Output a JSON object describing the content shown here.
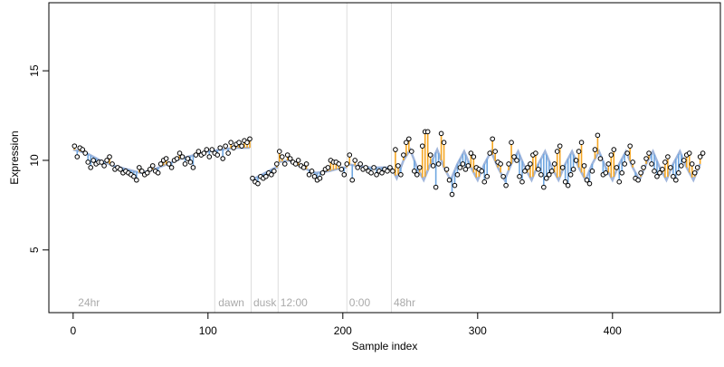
{
  "chart_data": {
    "type": "scatter",
    "title": "",
    "xlabel": "Sample index",
    "ylabel": "Expression",
    "xlim": [
      -18,
      480
    ],
    "ylim": [
      1.5,
      18.8
    ],
    "x_ticks": [
      0,
      100,
      200,
      300,
      400
    ],
    "y_ticks": [
      5,
      10,
      15
    ],
    "grid": false,
    "colors": {
      "points": "#000000",
      "fit_line": "#6E8FC9",
      "residual_above": "#F5A623",
      "residual_below": "#6EA6E0",
      "phase_lines": "#DDDDDD",
      "phase_labels": "#AAAAAA"
    },
    "phase_boundaries": [
      105,
      132,
      152,
      203,
      236
    ],
    "phase_labels": [
      {
        "x": 3,
        "text": "24hr"
      },
      {
        "x": 107,
        "text": "dawn"
      },
      {
        "x": 133,
        "text": "dusk"
      },
      {
        "x": 153,
        "text": "12:00"
      },
      {
        "x": 204,
        "text": "0:00"
      },
      {
        "x": 237,
        "text": "48hr"
      }
    ],
    "fit_segments": [
      {
        "name": "",
        "x": [
          0,
          10,
          20,
          30,
          40,
          50,
          60,
          70,
          80,
          90,
          100,
          110,
          120,
          131
        ],
        "y": [
          10.6,
          10.4,
          10.0,
          9.7,
          9.5,
          9.3,
          9.5,
          9.8,
          10.1,
          10.3,
          10.5,
          10.6,
          10.7,
          10.7
        ]
      },
      {
        "name": "",
        "x": [
          132,
          140,
          150,
          152
        ],
        "y": [
          8.9,
          9.2,
          9.6,
          9.6
        ]
      },
      {
        "name": "",
        "x": [
          152,
          160,
          170,
          180,
          190,
          200,
          203
        ],
        "y": [
          9.9,
          10.0,
          9.6,
          9.3,
          9.4,
          9.6,
          9.6
        ]
      },
      {
        "name": "",
        "x": [
          203,
          210,
          220,
          230,
          236
        ],
        "y": [
          9.8,
          9.7,
          9.6,
          9.6,
          9.6
        ]
      },
      {
        "name": "",
        "x": [
          236,
          240,
          245,
          250,
          255,
          260,
          265,
          270,
          275,
          280,
          285,
          290,
          295,
          300,
          305,
          310,
          315,
          320,
          325,
          330,
          335,
          340,
          345,
          350,
          355,
          360,
          365,
          370,
          375,
          380,
          385,
          390,
          395,
          400,
          405,
          410,
          415,
          420,
          425,
          430,
          435,
          440,
          445,
          450,
          455,
          460,
          465
        ],
        "y": [
          9.6,
          9.0,
          10.0,
          10.6,
          9.6,
          8.9,
          9.8,
          10.6,
          9.6,
          8.9,
          9.8,
          10.5,
          9.6,
          8.9,
          9.8,
          10.5,
          9.6,
          8.9,
          9.8,
          10.5,
          9.6,
          8.9,
          9.8,
          10.5,
          9.6,
          8.9,
          9.8,
          10.5,
          9.6,
          8.9,
          9.8,
          10.5,
          9.6,
          8.9,
          9.8,
          10.5,
          9.6,
          8.9,
          9.8,
          10.5,
          9.6,
          8.9,
          9.8,
          10.5,
          9.6,
          8.9,
          9.8
        ]
      }
    ],
    "points": [
      [
        1,
        10.8
      ],
      [
        3,
        10.2
      ],
      [
        5,
        10.7
      ],
      [
        7,
        10.6
      ],
      [
        9,
        10.4
      ],
      [
        11,
        9.9
      ],
      [
        13,
        9.6
      ],
      [
        15,
        10.0
      ],
      [
        17,
        9.8
      ],
      [
        19,
        9.9
      ],
      [
        21,
        9.9
      ],
      [
        23,
        9.7
      ],
      [
        25,
        10.0
      ],
      [
        27,
        10.2
      ],
      [
        29,
        9.8
      ],
      [
        31,
        9.5
      ],
      [
        33,
        9.6
      ],
      [
        35,
        9.5
      ],
      [
        37,
        9.3
      ],
      [
        39,
        9.4
      ],
      [
        41,
        9.3
      ],
      [
        43,
        9.2
      ],
      [
        45,
        9.1
      ],
      [
        47,
        8.9
      ],
      [
        49,
        9.6
      ],
      [
        51,
        9.4
      ],
      [
        53,
        9.2
      ],
      [
        55,
        9.3
      ],
      [
        57,
        9.5
      ],
      [
        59,
        9.7
      ],
      [
        61,
        9.4
      ],
      [
        63,
        9.3
      ],
      [
        65,
        9.8
      ],
      [
        67,
        10.0
      ],
      [
        69,
        10.1
      ],
      [
        71,
        9.8
      ],
      [
        73,
        9.6
      ],
      [
        75,
        10.0
      ],
      [
        77,
        10.1
      ],
      [
        79,
        10.4
      ],
      [
        81,
        10.2
      ],
      [
        83,
        9.8
      ],
      [
        85,
        10.1
      ],
      [
        87,
        9.9
      ],
      [
        89,
        9.6
      ],
      [
        91,
        10.3
      ],
      [
        93,
        10.5
      ],
      [
        95,
        10.3
      ],
      [
        97,
        10.4
      ],
      [
        99,
        10.6
      ],
      [
        101,
        10.2
      ],
      [
        103,
        10.6
      ],
      [
        105,
        10.4
      ],
      [
        107,
        10.3
      ],
      [
        109,
        10.7
      ],
      [
        111,
        10.1
      ],
      [
        113,
        10.8
      ],
      [
        115,
        10.4
      ],
      [
        117,
        11.0
      ],
      [
        119,
        10.7
      ],
      [
        121,
        10.9
      ],
      [
        123,
        11.0
      ],
      [
        125,
        10.8
      ],
      [
        127,
        11.1
      ],
      [
        129,
        11.0
      ],
      [
        131,
        11.2
      ],
      [
        133,
        9.0
      ],
      [
        135,
        8.8
      ],
      [
        137,
        8.7
      ],
      [
        139,
        9.1
      ],
      [
        141,
        9.0
      ],
      [
        143,
        9.1
      ],
      [
        145,
        9.3
      ],
      [
        147,
        9.2
      ],
      [
        149,
        9.4
      ],
      [
        151,
        9.8
      ],
      [
        153,
        10.5
      ],
      [
        155,
        10.2
      ],
      [
        157,
        9.8
      ],
      [
        159,
        10.3
      ],
      [
        161,
        10.1
      ],
      [
        163,
        9.9
      ],
      [
        165,
        9.8
      ],
      [
        167,
        10.0
      ],
      [
        169,
        9.7
      ],
      [
        171,
        9.6
      ],
      [
        173,
        9.8
      ],
      [
        175,
        9.2
      ],
      [
        177,
        9.4
      ],
      [
        179,
        9.1
      ],
      [
        181,
        8.9
      ],
      [
        183,
        9.0
      ],
      [
        185,
        9.3
      ],
      [
        187,
        9.5
      ],
      [
        189,
        9.6
      ],
      [
        191,
        10.0
      ],
      [
        193,
        9.9
      ],
      [
        195,
        9.9
      ],
      [
        197,
        9.8
      ],
      [
        199,
        9.5
      ],
      [
        201,
        9.2
      ],
      [
        203,
        9.8
      ],
      [
        205,
        10.3
      ],
      [
        207,
        8.9
      ],
      [
        209,
        10.0
      ],
      [
        211,
        9.6
      ],
      [
        213,
        9.8
      ],
      [
        215,
        9.5
      ],
      [
        217,
        9.6
      ],
      [
        219,
        9.4
      ],
      [
        221,
        9.3
      ],
      [
        223,
        9.6
      ],
      [
        225,
        9.2
      ],
      [
        227,
        9.4
      ],
      [
        229,
        9.3
      ],
      [
        231,
        9.5
      ],
      [
        233,
        9.4
      ],
      [
        235,
        9.6
      ],
      [
        237,
        9.4
      ],
      [
        239,
        10.6
      ],
      [
        241,
        9.7
      ],
      [
        243,
        9.2
      ],
      [
        245,
        10.3
      ],
      [
        247,
        11.0
      ],
      [
        249,
        11.2
      ],
      [
        251,
        10.5
      ],
      [
        253,
        9.4
      ],
      [
        255,
        9.2
      ],
      [
        257,
        9.6
      ],
      [
        259,
        10.8
      ],
      [
        261,
        11.6
      ],
      [
        263,
        11.6
      ],
      [
        265,
        10.3
      ],
      [
        267,
        9.7
      ],
      [
        269,
        8.5
      ],
      [
        271,
        9.8
      ],
      [
        273,
        11.5
      ],
      [
        275,
        11.0
      ],
      [
        277,
        9.5
      ],
      [
        279,
        8.9
      ],
      [
        281,
        8.1
      ],
      [
        283,
        8.6
      ],
      [
        285,
        9.2
      ],
      [
        287,
        9.6
      ],
      [
        289,
        9.8
      ],
      [
        291,
        9.5
      ],
      [
        293,
        9.7
      ],
      [
        295,
        10.4
      ],
      [
        297,
        10.2
      ],
      [
        299,
        9.6
      ],
      [
        301,
        9.5
      ],
      [
        303,
        9.4
      ],
      [
        305,
        8.8
      ],
      [
        307,
        9.1
      ],
      [
        309,
        10.4
      ],
      [
        311,
        11.2
      ],
      [
        313,
        10.5
      ],
      [
        315,
        9.9
      ],
      [
        317,
        9.8
      ],
      [
        319,
        9.1
      ],
      [
        321,
        8.6
      ],
      [
        323,
        9.8
      ],
      [
        325,
        11.0
      ],
      [
        327,
        10.2
      ],
      [
        329,
        10.0
      ],
      [
        331,
        9.1
      ],
      [
        333,
        8.8
      ],
      [
        335,
        9.4
      ],
      [
        337,
        9.6
      ],
      [
        339,
        9.8
      ],
      [
        341,
        10.3
      ],
      [
        343,
        10.4
      ],
      [
        345,
        9.5
      ],
      [
        347,
        9.2
      ],
      [
        349,
        8.5
      ],
      [
        351,
        9.0
      ],
      [
        353,
        9.2
      ],
      [
        355,
        9.4
      ],
      [
        357,
        9.8
      ],
      [
        359,
        10.5
      ],
      [
        361,
        10.8
      ],
      [
        363,
        9.6
      ],
      [
        365,
        8.8
      ],
      [
        367,
        8.6
      ],
      [
        369,
        9.2
      ],
      [
        371,
        9.5
      ],
      [
        373,
        10.0
      ],
      [
        375,
        10.5
      ],
      [
        377,
        11.0
      ],
      [
        379,
        9.7
      ],
      [
        381,
        8.9
      ],
      [
        383,
        8.7
      ],
      [
        385,
        9.4
      ],
      [
        387,
        10.6
      ],
      [
        389,
        11.4
      ],
      [
        391,
        10.1
      ],
      [
        393,
        9.2
      ],
      [
        395,
        9.3
      ],
      [
        397,
        9.8
      ],
      [
        399,
        10.3
      ],
      [
        401,
        10.6
      ],
      [
        403,
        9.6
      ],
      [
        405,
        8.8
      ],
      [
        407,
        9.3
      ],
      [
        409,
        9.8
      ],
      [
        411,
        10.4
      ],
      [
        413,
        10.8
      ],
      [
        415,
        9.9
      ],
      [
        417,
        9.0
      ],
      [
        419,
        8.9
      ],
      [
        421,
        9.3
      ],
      [
        423,
        9.6
      ],
      [
        425,
        10.1
      ],
      [
        427,
        10.4
      ],
      [
        429,
        9.8
      ],
      [
        431,
        9.4
      ],
      [
        433,
        9.1
      ],
      [
        435,
        9.3
      ],
      [
        437,
        9.5
      ],
      [
        439,
        9.9
      ],
      [
        441,
        10.2
      ],
      [
        443,
        9.6
      ],
      [
        445,
        9.1
      ],
      [
        447,
        8.9
      ],
      [
        449,
        9.3
      ],
      [
        451,
        9.7
      ],
      [
        453,
        10.0
      ],
      [
        455,
        10.3
      ],
      [
        457,
        10.4
      ],
      [
        459,
        9.8
      ],
      [
        461,
        9.3
      ],
      [
        463,
        9.6
      ],
      [
        465,
        10.2
      ],
      [
        467,
        10.4
      ]
    ]
  }
}
